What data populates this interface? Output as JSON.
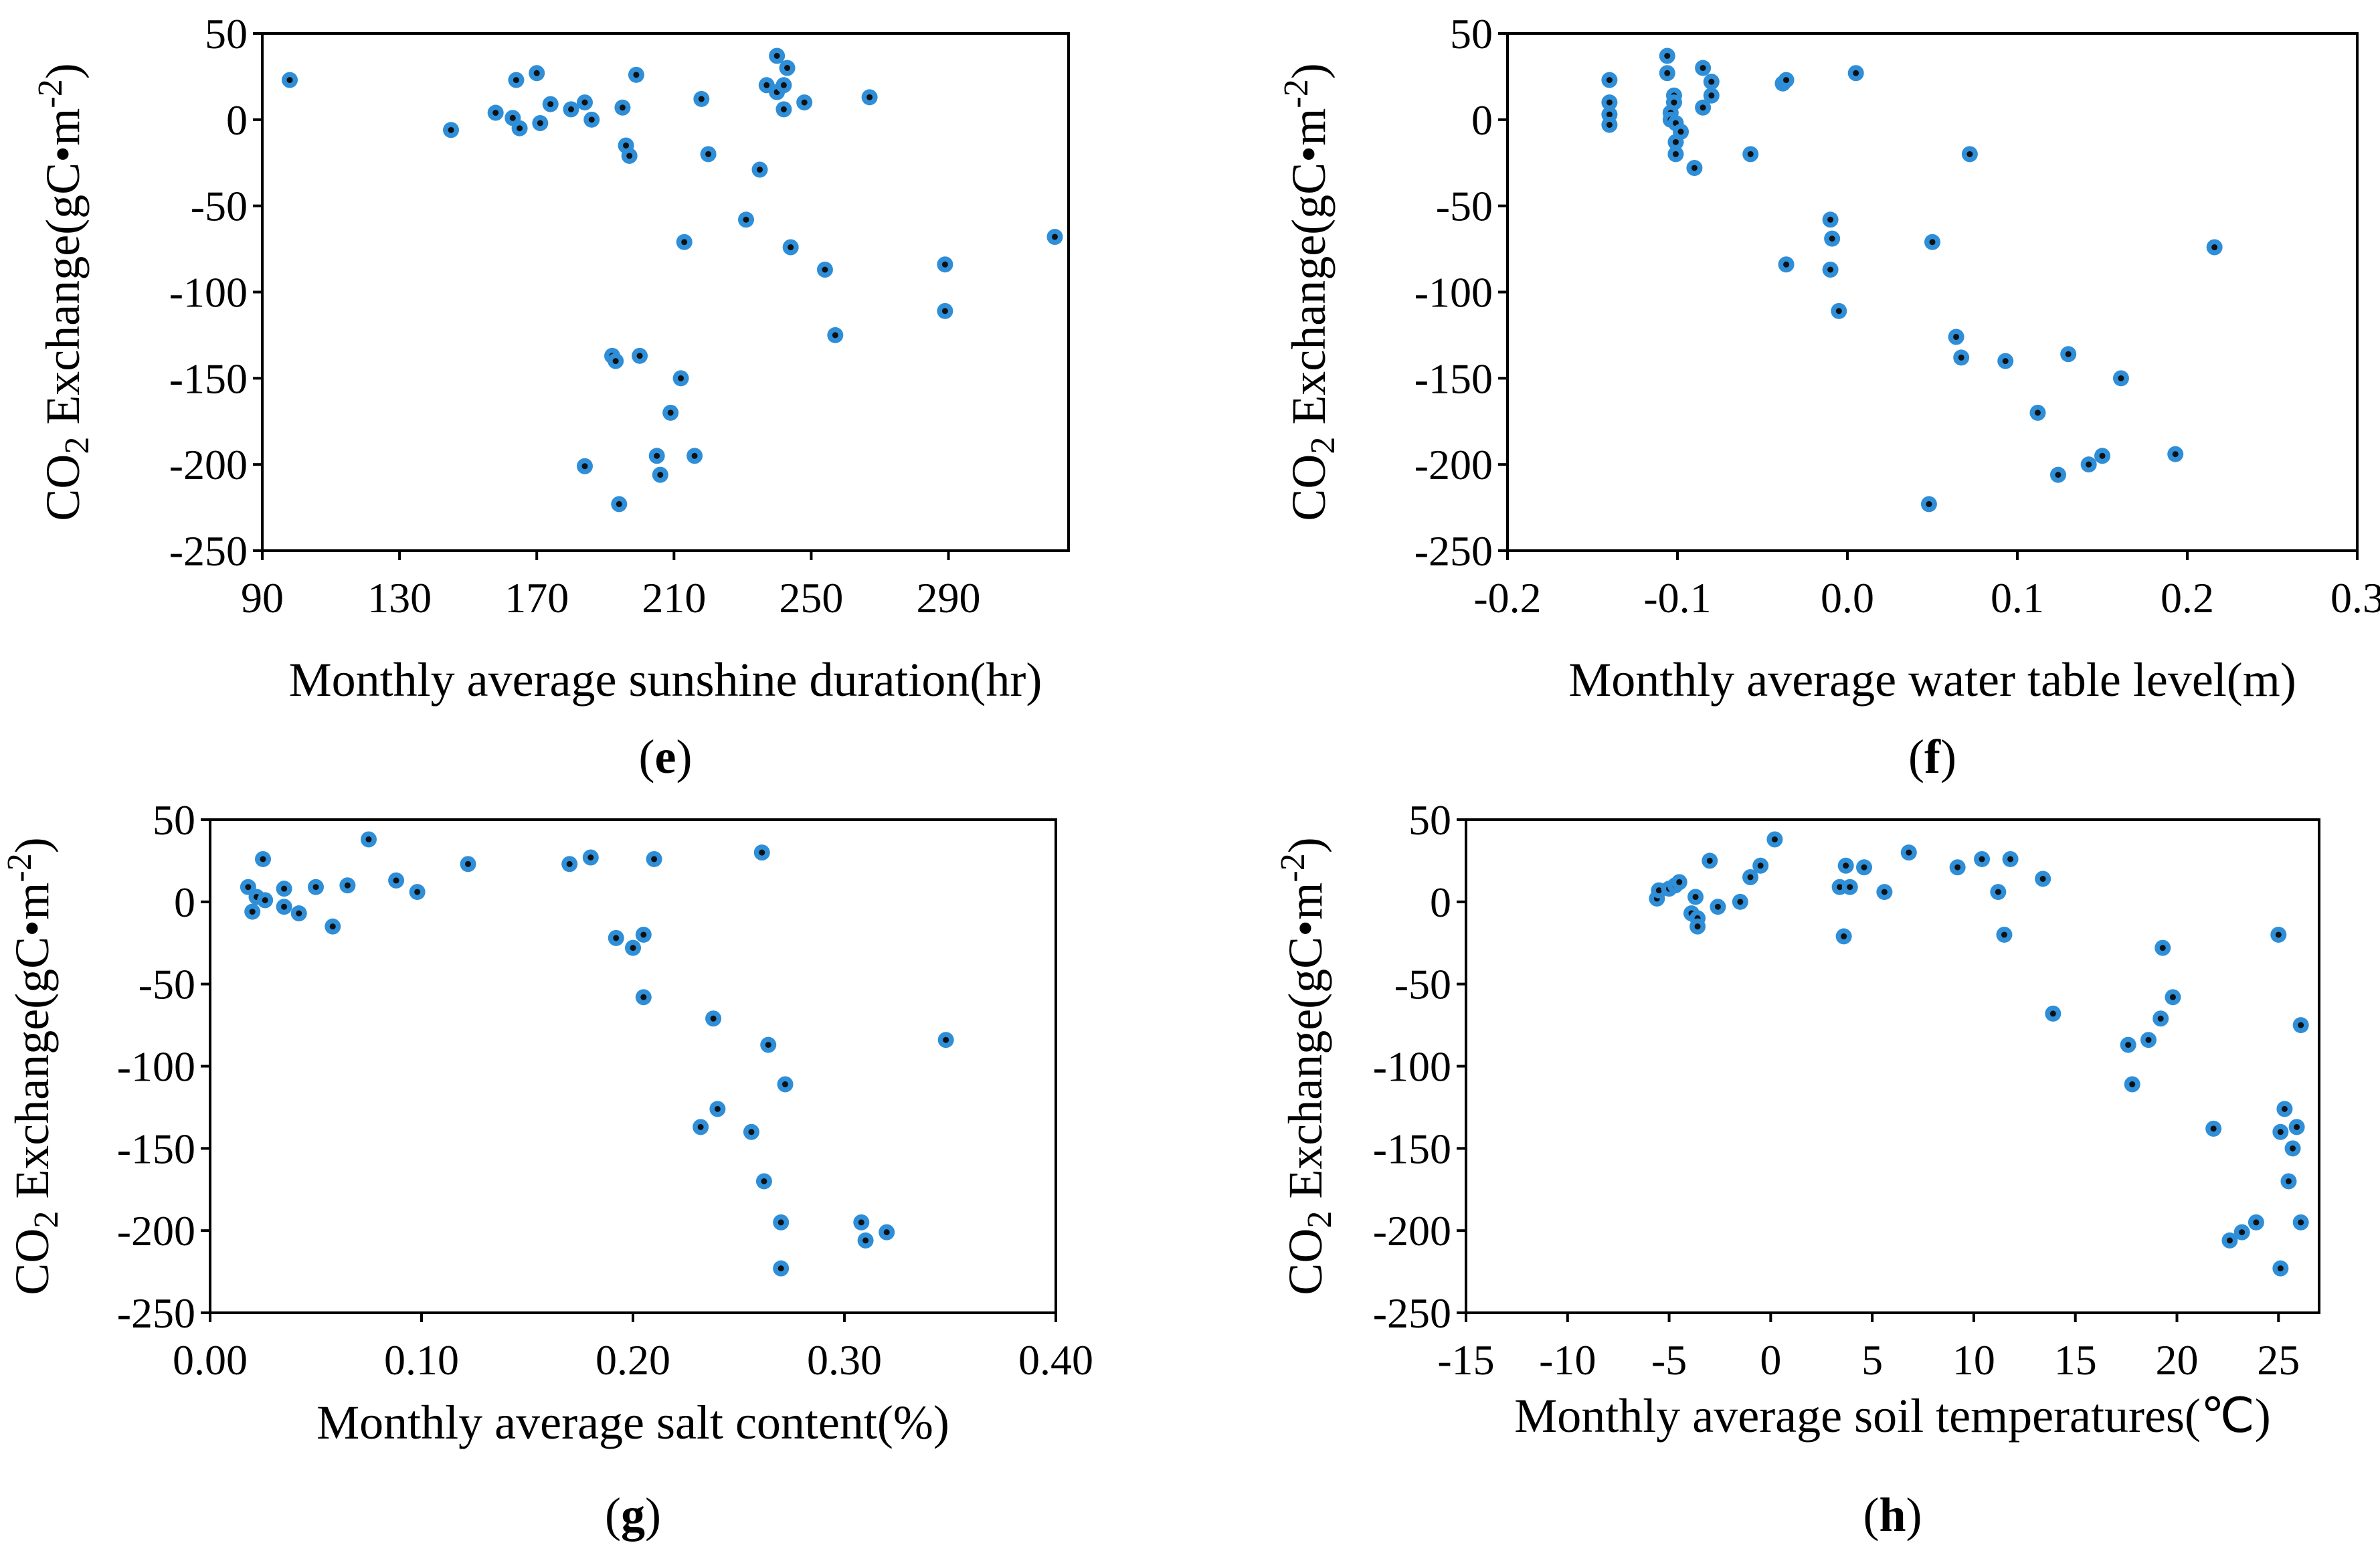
{
  "chart_data": [
    {
      "type": "scatter",
      "panel": "e",
      "xlabel": "Monthly average sunshine duration(hr)",
      "ylabel": "CO2 Exchange(gC•m-2)",
      "ylabel_parts": {
        "pre": "CO",
        "sub": "2",
        "mid": " Exchange(gC•m",
        "sup": "-2",
        "post": ")"
      },
      "xlim": [
        90,
        325
      ],
      "ylim": [
        -250,
        50
      ],
      "xticks": [
        90,
        130,
        170,
        210,
        250,
        290
      ],
      "yticks": [
        50,
        0,
        -50,
        -100,
        -150,
        -200,
        -250
      ],
      "marker_color": "#2e8ed8",
      "points": [
        [
          98,
          23
        ],
        [
          145,
          -6
        ],
        [
          158,
          4
        ],
        [
          163,
          1
        ],
        [
          164,
          23
        ],
        [
          165,
          -5
        ],
        [
          170,
          27
        ],
        [
          171,
          -2
        ],
        [
          174,
          9
        ],
        [
          180,
          6
        ],
        [
          184,
          10
        ],
        [
          186,
          0
        ],
        [
          195,
          7
        ],
        [
          196,
          -15
        ],
        [
          197,
          -21
        ],
        [
          199,
          26
        ],
        [
          213,
          -71
        ],
        [
          218,
          12
        ],
        [
          220,
          -20
        ],
        [
          231,
          -58
        ],
        [
          235,
          -29
        ],
        [
          237,
          20
        ],
        [
          240,
          37
        ],
        [
          240,
          16
        ],
        [
          242,
          20
        ],
        [
          242,
          6
        ],
        [
          243,
          30
        ],
        [
          244,
          -74
        ],
        [
          248,
          10
        ],
        [
          254,
          -87
        ],
        [
          257,
          -125
        ],
        [
          267,
          13
        ],
        [
          289,
          -84
        ],
        [
          289,
          -111
        ],
        [
          321,
          -68
        ],
        [
          192,
          -137
        ],
        [
          193,
          -140
        ],
        [
          200,
          -137
        ],
        [
          212,
          -150
        ],
        [
          209,
          -170
        ],
        [
          205,
          -195
        ],
        [
          216,
          -195
        ],
        [
          206,
          -206
        ],
        [
          184,
          -201
        ],
        [
          194,
          -223
        ]
      ]
    },
    {
      "type": "scatter",
      "panel": "f",
      "xlabel": "Monthly average water table level(m)",
      "ylabel": "CO2 Exchange(gC•m-2)",
      "ylabel_parts": {
        "pre": "CO",
        "sub": "2",
        "mid": " Exchange(gC•m",
        "sup": "-2",
        "post": ")"
      },
      "xlim": [
        -0.2,
        0.3
      ],
      "ylim": [
        -250,
        50
      ],
      "xticks": [
        -0.2,
        -0.1,
        0.0,
        0.1,
        0.2,
        0.3
      ],
      "xtick_labels": [
        "-0.2",
        "-0.1",
        "0.0",
        "0.1",
        "0.2",
        "0.3"
      ],
      "yticks": [
        50,
        0,
        -50,
        -100,
        -150,
        -200,
        -250
      ],
      "marker_color": "#2e8ed8",
      "points": [
        [
          -0.14,
          23
        ],
        [
          -0.14,
          10
        ],
        [
          -0.14,
          3
        ],
        [
          -0.14,
          -3
        ],
        [
          -0.106,
          37
        ],
        [
          -0.106,
          27
        ],
        [
          -0.104,
          4
        ],
        [
          -0.104,
          0
        ],
        [
          -0.102,
          14
        ],
        [
          -0.102,
          10
        ],
        [
          -0.101,
          -2
        ],
        [
          -0.101,
          -13
        ],
        [
          -0.101,
          -20
        ],
        [
          -0.098,
          -7
        ],
        [
          -0.09,
          -28
        ],
        [
          -0.085,
          30
        ],
        [
          -0.085,
          7
        ],
        [
          -0.08,
          22
        ],
        [
          -0.08,
          14
        ],
        [
          -0.057,
          -20
        ],
        [
          -0.038,
          21
        ],
        [
          -0.036,
          23
        ],
        [
          -0.036,
          -84
        ],
        [
          0.005,
          27
        ],
        [
          -0.01,
          -58
        ],
        [
          -0.009,
          -69
        ],
        [
          -0.01,
          -87
        ],
        [
          -0.005,
          -111
        ],
        [
          0.05,
          -71
        ],
        [
          0.072,
          -20
        ],
        [
          0.064,
          -126
        ],
        [
          0.067,
          -138
        ],
        [
          0.093,
          -140
        ],
        [
          0.112,
          -170
        ],
        [
          0.13,
          -136
        ],
        [
          0.161,
          -150
        ],
        [
          0.142,
          -200
        ],
        [
          0.15,
          -195
        ],
        [
          0.124,
          -206
        ],
        [
          0.193,
          -194
        ],
        [
          0.216,
          -74
        ],
        [
          0.048,
          -223
        ]
      ]
    },
    {
      "type": "scatter",
      "panel": "g",
      "xlabel": "Monthly average salt content(%)",
      "ylabel": "CO2 Exchange(gC•m-2)",
      "ylabel_parts": {
        "pre": "CO",
        "sub": "2",
        "mid": " Exchange(gC•m",
        "sup": "-2",
        "post": ")"
      },
      "xlim": [
        0.0,
        0.4
      ],
      "ylim": [
        -250,
        50
      ],
      "xticks": [
        0.0,
        0.1,
        0.2,
        0.3,
        0.4
      ],
      "xtick_labels": [
        "0.00",
        "0.10",
        "0.20",
        "0.30",
        "0.40"
      ],
      "yticks": [
        50,
        0,
        -50,
        -100,
        -150,
        -200,
        -250
      ],
      "marker_color": "#2e8ed8",
      "points": [
        [
          0.018,
          9
        ],
        [
          0.02,
          -6
        ],
        [
          0.022,
          3
        ],
        [
          0.025,
          26
        ],
        [
          0.026,
          1
        ],
        [
          0.035,
          8
        ],
        [
          0.035,
          -3
        ],
        [
          0.042,
          -7
        ],
        [
          0.05,
          9
        ],
        [
          0.058,
          -15
        ],
        [
          0.065,
          10
        ],
        [
          0.075,
          38
        ],
        [
          0.088,
          13
        ],
        [
          0.098,
          6
        ],
        [
          0.122,
          23
        ],
        [
          0.17,
          23
        ],
        [
          0.18,
          27
        ],
        [
          0.192,
          -22
        ],
        [
          0.2,
          -28
        ],
        [
          0.205,
          -20
        ],
        [
          0.205,
          -58
        ],
        [
          0.21,
          26
        ],
        [
          0.238,
          -71
        ],
        [
          0.24,
          -126
        ],
        [
          0.232,
          -137
        ],
        [
          0.256,
          -140
        ],
        [
          0.261,
          30
        ],
        [
          0.262,
          -170
        ],
        [
          0.264,
          -87
        ],
        [
          0.272,
          -111
        ],
        [
          0.27,
          -195
        ],
        [
          0.27,
          -223
        ],
        [
          0.308,
          -195
        ],
        [
          0.31,
          -206
        ],
        [
          0.32,
          -201
        ],
        [
          0.348,
          -84
        ]
      ]
    },
    {
      "type": "scatter",
      "panel": "h",
      "xlabel": "Monthly average soil temperatures(℃)",
      "ylabel": "CO2 Exchange(gC•m-2)",
      "ylabel_parts": {
        "pre": "CO",
        "sub": "2",
        "mid": " Exchange(gC•m",
        "sup": "-2",
        "post": ")"
      },
      "xlim": [
        -15,
        27
      ],
      "ylim": [
        -250,
        50
      ],
      "xticks": [
        -15,
        -10,
        -5,
        0,
        5,
        10,
        15,
        20,
        25
      ],
      "yticks": [
        50,
        0,
        -50,
        -100,
        -150,
        -200,
        -250
      ],
      "marker_color": "#2e8ed8",
      "points": [
        [
          -5.6,
          2
        ],
        [
          -5.5,
          7
        ],
        [
          -5,
          8
        ],
        [
          -4.7,
          10
        ],
        [
          -4.5,
          12
        ],
        [
          -3.9,
          -7
        ],
        [
          -3.7,
          3
        ],
        [
          -3.6,
          -10
        ],
        [
          -3.6,
          -15
        ],
        [
          -3,
          25
        ],
        [
          -2.6,
          -3
        ],
        [
          -1.5,
          0
        ],
        [
          -1,
          15
        ],
        [
          -0.5,
          22
        ],
        [
          0.2,
          38
        ],
        [
          3.4,
          9
        ],
        [
          3.6,
          -21
        ],
        [
          3.7,
          22
        ],
        [
          3.9,
          9
        ],
        [
          4.6,
          21
        ],
        [
          5.6,
          6
        ],
        [
          6.8,
          30
        ],
        [
          9.2,
          21
        ],
        [
          10.4,
          26
        ],
        [
          11.2,
          6
        ],
        [
          11.5,
          -20
        ],
        [
          11.8,
          26
        ],
        [
          13.4,
          14
        ],
        [
          13.9,
          -68
        ],
        [
          17.6,
          -87
        ],
        [
          17.8,
          -111
        ],
        [
          18.6,
          -84
        ],
        [
          19.2,
          -71
        ],
        [
          19.3,
          -28
        ],
        [
          19.8,
          -58
        ],
        [
          21.8,
          -138
        ],
        [
          22.6,
          -206
        ],
        [
          23.2,
          -201
        ],
        [
          23.9,
          -195
        ],
        [
          25.0,
          -20
        ],
        [
          25.1,
          -140
        ],
        [
          25.3,
          -126
        ],
        [
          25.5,
          -170
        ],
        [
          25.7,
          -150
        ],
        [
          25.9,
          -137
        ],
        [
          26.1,
          -195
        ],
        [
          26.1,
          -75
        ],
        [
          25.1,
          -223
        ]
      ]
    }
  ]
}
